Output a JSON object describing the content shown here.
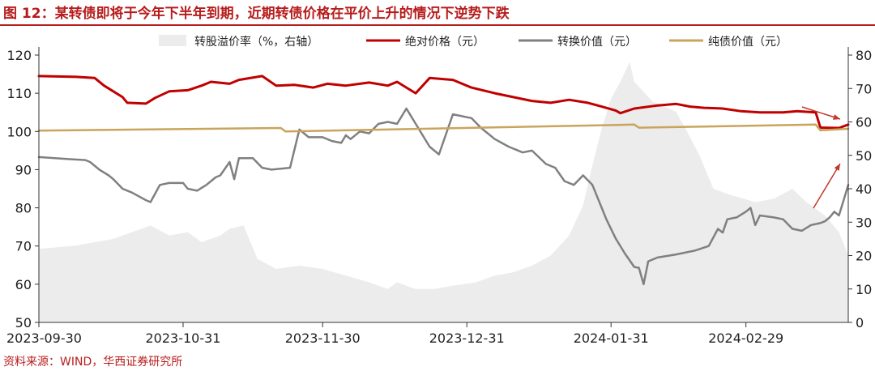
{
  "title": "图 12：某转债即将于今年下半年到期，近期转债价格在平价上升的情况下逆势下跌",
  "source": "资料来源：WIND，华西证券研究所",
  "colors": {
    "title": "#b71c1c",
    "premium_area": "#ececec",
    "bond_price": "#c00000",
    "conversion_value": "#808080",
    "bond_floor": "#c9a45c",
    "arrow": "#c0392b"
  },
  "chart_data": {
    "type": "line",
    "legend_position": "top",
    "grid": false,
    "x_range": [
      "2023-09-30",
      "2024-03-22"
    ],
    "x_ticks": [
      "2023-09-30",
      "2023-10-31",
      "2023-11-30",
      "2023-12-31",
      "2024-01-31",
      "2024-02-29"
    ],
    "ylim_left": [
      50,
      120
    ],
    "yticks_left": [
      "120",
      "110",
      "100",
      "90",
      "80",
      "70",
      "60",
      "50"
    ],
    "ylim_right": [
      0,
      80
    ],
    "yticks_right": [
      "80",
      "70",
      "60",
      "50",
      "40",
      "30",
      "20",
      "10",
      "0"
    ],
    "series": [
      {
        "name": "转股溢价率（%，右轴）",
        "type": "area",
        "axis": "right",
        "points": [
          [
            "2023-09-30",
            22
          ],
          [
            "2023-10-08",
            23
          ],
          [
            "2023-10-12",
            24
          ],
          [
            "2023-10-16",
            25
          ],
          [
            "2023-10-20",
            27
          ],
          [
            "2023-10-24",
            29
          ],
          [
            "2023-10-28",
            26
          ],
          [
            "2023-11-01",
            27
          ],
          [
            "2023-11-04",
            24
          ],
          [
            "2023-11-08",
            26
          ],
          [
            "2023-11-10",
            28
          ],
          [
            "2023-11-13",
            29
          ],
          [
            "2023-11-16",
            19
          ],
          [
            "2023-11-20",
            16
          ],
          [
            "2023-11-25",
            17
          ],
          [
            "2023-11-30",
            16
          ],
          [
            "2023-12-05",
            14
          ],
          [
            "2023-12-10",
            12
          ],
          [
            "2023-12-14",
            10
          ],
          [
            "2023-12-16",
            12
          ],
          [
            "2023-12-20",
            10
          ],
          [
            "2023-12-24",
            10
          ],
          [
            "2023-12-28",
            11
          ],
          [
            "2024-01-02",
            12
          ],
          [
            "2024-01-06",
            14
          ],
          [
            "2024-01-10",
            15
          ],
          [
            "2024-01-14",
            17
          ],
          [
            "2024-01-18",
            20
          ],
          [
            "2024-01-22",
            26
          ],
          [
            "2024-01-25",
            35
          ],
          [
            "2024-01-27",
            47
          ],
          [
            "2024-01-29",
            58
          ],
          [
            "2024-01-31",
            67
          ],
          [
            "2024-02-02",
            72
          ],
          [
            "2024-02-04",
            78
          ],
          [
            "2024-02-05",
            72
          ],
          [
            "2024-02-07",
            69
          ],
          [
            "2024-02-09",
            66
          ],
          [
            "2024-02-11",
            65
          ],
          [
            "2024-02-14",
            63
          ],
          [
            "2024-02-16",
            58
          ],
          [
            "2024-02-19",
            50
          ],
          [
            "2024-02-22",
            40
          ],
          [
            "2024-02-26",
            38
          ],
          [
            "2024-03-02",
            36
          ],
          [
            "2024-03-06",
            37
          ],
          [
            "2024-03-10",
            40
          ],
          [
            "2024-03-13",
            36
          ],
          [
            "2024-03-17",
            32
          ],
          [
            "2024-03-20",
            27
          ],
          [
            "2024-03-22",
            20
          ]
        ]
      },
      {
        "name": "绝对价格（元）",
        "type": "line",
        "axis": "left",
        "points": [
          [
            "2023-09-30",
            114.5
          ],
          [
            "2023-10-08",
            114.3
          ],
          [
            "2023-10-12",
            114.0
          ],
          [
            "2023-10-14",
            112.0
          ],
          [
            "2023-10-16",
            110.5
          ],
          [
            "2023-10-18",
            109.0
          ],
          [
            "2023-10-19",
            107.5
          ],
          [
            "2023-10-23",
            107.3
          ],
          [
            "2023-10-25",
            108.8
          ],
          [
            "2023-10-28",
            110.5
          ],
          [
            "2023-11-01",
            110.8
          ],
          [
            "2023-11-04",
            112.0
          ],
          [
            "2023-11-06",
            113.0
          ],
          [
            "2023-11-10",
            112.5
          ],
          [
            "2023-11-12",
            113.5
          ],
          [
            "2023-11-17",
            114.5
          ],
          [
            "2023-11-20",
            112.0
          ],
          [
            "2023-11-24",
            112.2
          ],
          [
            "2023-11-28",
            111.5
          ],
          [
            "2023-12-01",
            112.5
          ],
          [
            "2023-12-05",
            112.0
          ],
          [
            "2023-12-10",
            112.8
          ],
          [
            "2023-12-14",
            112.0
          ],
          [
            "2023-12-16",
            113.0
          ],
          [
            "2023-12-18",
            111.5
          ],
          [
            "2023-12-20",
            110.0
          ],
          [
            "2023-12-23",
            114.0
          ],
          [
            "2023-12-28",
            113.5
          ],
          [
            "2024-01-01",
            111.5
          ],
          [
            "2024-01-06",
            110.0
          ],
          [
            "2024-01-10",
            109.0
          ],
          [
            "2024-01-14",
            108.0
          ],
          [
            "2024-01-18",
            107.5
          ],
          [
            "2024-01-22",
            108.3
          ],
          [
            "2024-01-26",
            107.5
          ],
          [
            "2024-01-29",
            106.5
          ],
          [
            "2024-02-01",
            105.5
          ],
          [
            "2024-02-02",
            104.8
          ],
          [
            "2024-02-05",
            106.0
          ],
          [
            "2024-02-10",
            106.8
          ],
          [
            "2024-02-14",
            107.2
          ],
          [
            "2024-02-17",
            106.5
          ],
          [
            "2024-02-20",
            106.2
          ],
          [
            "2024-02-24",
            106.0
          ],
          [
            "2024-02-28",
            105.3
          ],
          [
            "2024-03-03",
            105.0
          ],
          [
            "2024-03-08",
            105.0
          ],
          [
            "2024-03-11",
            105.3
          ],
          [
            "2024-03-15",
            105.0
          ],
          [
            "2024-03-16",
            101.0
          ],
          [
            "2024-03-20",
            100.9
          ],
          [
            "2024-03-22",
            101.8
          ]
        ]
      },
      {
        "name": "转换价值（元）",
        "type": "line",
        "axis": "left",
        "points": [
          [
            "2023-09-30",
            93.3
          ],
          [
            "2023-10-06",
            92.8
          ],
          [
            "2023-10-10",
            92.5
          ],
          [
            "2023-10-11",
            92.0
          ],
          [
            "2023-10-13",
            90.0
          ],
          [
            "2023-10-15",
            88.5
          ],
          [
            "2023-10-16",
            87.5
          ],
          [
            "2023-10-18",
            85.0
          ],
          [
            "2023-10-20",
            84.0
          ],
          [
            "2023-10-23",
            82.0
          ],
          [
            "2023-10-24",
            81.5
          ],
          [
            "2023-10-26",
            86.0
          ],
          [
            "2023-10-28",
            86.5
          ],
          [
            "2023-10-31",
            86.5
          ],
          [
            "2023-11-01",
            85.0
          ],
          [
            "2023-11-03",
            84.5
          ],
          [
            "2023-11-05",
            86.0
          ],
          [
            "2023-11-07",
            88.0
          ],
          [
            "2023-11-08",
            88.5
          ],
          [
            "2023-11-10",
            92.0
          ],
          [
            "2023-11-11",
            87.5
          ],
          [
            "2023-11-12",
            93.0
          ],
          [
            "2023-11-15",
            93.0
          ],
          [
            "2023-11-17",
            90.5
          ],
          [
            "2023-11-19",
            90.0
          ],
          [
            "2023-11-23",
            90.5
          ],
          [
            "2023-11-25",
            100.5
          ],
          [
            "2023-11-27",
            98.5
          ],
          [
            "2023-11-30",
            98.5
          ],
          [
            "2023-12-02",
            97.5
          ],
          [
            "2023-12-04",
            97.0
          ],
          [
            "2023-12-05",
            99.0
          ],
          [
            "2023-12-06",
            98.0
          ],
          [
            "2023-12-08",
            100.0
          ],
          [
            "2023-12-10",
            99.5
          ],
          [
            "2023-12-12",
            102.0
          ],
          [
            "2023-12-14",
            102.5
          ],
          [
            "2023-12-16",
            102.0
          ],
          [
            "2023-12-18",
            106.0
          ],
          [
            "2023-12-20",
            102.0
          ],
          [
            "2023-12-23",
            96.0
          ],
          [
            "2023-12-25",
            94.0
          ],
          [
            "2023-12-28",
            104.5
          ],
          [
            "2024-01-01",
            103.5
          ],
          [
            "2024-01-03",
            101.0
          ],
          [
            "2024-01-06",
            98.0
          ],
          [
            "2024-01-09",
            96.0
          ],
          [
            "2024-01-12",
            94.5
          ],
          [
            "2024-01-14",
            95.0
          ],
          [
            "2024-01-17",
            91.5
          ],
          [
            "2024-01-19",
            90.5
          ],
          [
            "2024-01-21",
            87.0
          ],
          [
            "2024-01-23",
            86.0
          ],
          [
            "2024-01-25",
            88.5
          ],
          [
            "2024-01-27",
            86.0
          ],
          [
            "2024-01-30",
            77.0
          ],
          [
            "2024-02-01",
            72.0
          ],
          [
            "2024-02-03",
            68.0
          ],
          [
            "2024-02-05",
            64.5
          ],
          [
            "2024-02-06",
            64.3
          ],
          [
            "2024-02-07",
            60.0
          ],
          [
            "2024-02-08",
            66.0
          ],
          [
            "2024-02-10",
            67.0
          ],
          [
            "2024-02-14",
            67.8
          ],
          [
            "2024-02-18",
            68.8
          ],
          [
            "2024-02-21",
            70.0
          ],
          [
            "2024-02-23",
            74.5
          ],
          [
            "2024-02-24",
            73.5
          ],
          [
            "2024-02-25",
            77.0
          ],
          [
            "2024-02-27",
            77.5
          ],
          [
            "2024-02-29",
            79.0
          ],
          [
            "2024-03-01",
            80.0
          ],
          [
            "2024-03-02",
            75.5
          ],
          [
            "2024-03-03",
            78.0
          ],
          [
            "2024-03-06",
            77.5
          ],
          [
            "2024-03-08",
            77.0
          ],
          [
            "2024-03-10",
            74.5
          ],
          [
            "2024-03-12",
            74.0
          ],
          [
            "2024-03-14",
            75.5
          ],
          [
            "2024-03-16",
            76.0
          ],
          [
            "2024-03-17",
            76.5
          ],
          [
            "2024-03-18",
            77.5
          ],
          [
            "2024-03-19",
            79.0
          ],
          [
            "2024-03-20",
            78.0
          ],
          [
            "2024-03-21",
            82.0
          ],
          [
            "2024-03-22",
            86.0
          ]
        ]
      },
      {
        "name": "纯债价值（元）",
        "type": "line",
        "axis": "left",
        "points": [
          [
            "2023-09-30",
            100.2
          ],
          [
            "2023-11-21",
            100.9
          ],
          [
            "2023-11-22",
            100.0
          ],
          [
            "2024-02-05",
            101.8
          ],
          [
            "2024-02-06",
            101.0
          ],
          [
            "2024-03-15",
            101.8
          ],
          [
            "2024-03-16",
            100.3
          ],
          [
            "2024-03-22",
            100.7
          ]
        ]
      }
    ]
  }
}
